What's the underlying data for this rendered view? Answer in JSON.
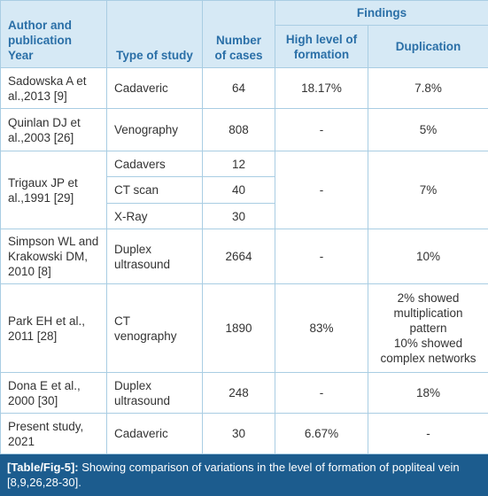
{
  "header": {
    "author": "Author and publication Year",
    "type": "Type of study",
    "cases": "Number of cases",
    "findings": "Findings",
    "high": "High level of formation",
    "duplication": "Duplication"
  },
  "rows": [
    {
      "author": "Sadowska A et al.,2013 [9]",
      "studies": [
        {
          "type": "Cadaveric",
          "cases": 64
        }
      ],
      "high": "18.17%",
      "duplication": "7.8%"
    },
    {
      "author": "Quinlan DJ et al.,2003 [26]",
      "studies": [
        {
          "type": "Venography",
          "cases": 808
        }
      ],
      "high": "-",
      "duplication": "5%"
    },
    {
      "author": "Trigaux JP et al.,1991 [29]",
      "studies": [
        {
          "type": "Cadavers",
          "cases": 12
        },
        {
          "type": "CT scan",
          "cases": 40
        },
        {
          "type": "X-Ray",
          "cases": 30
        }
      ],
      "high": "-",
      "duplication": "7%"
    },
    {
      "author": "Simpson WL and Krakowski DM, 2010 [8]",
      "studies": [
        {
          "type": "Duplex ultrasound",
          "cases": 2664
        }
      ],
      "high": "-",
      "duplication": "10%"
    },
    {
      "author": "Park EH et al., 2011 [28]",
      "studies": [
        {
          "type": "CT venography",
          "cases": 1890
        }
      ],
      "high": "83%",
      "duplication": [
        "2% showed multiplication pattern",
        "10% showed complex networks"
      ]
    },
    {
      "author": "Dona E et al., 2000 [30]",
      "studies": [
        {
          "type": "Duplex ultrasound",
          "cases": 248
        }
      ],
      "high": "-",
      "duplication": "18%"
    },
    {
      "author": "Present study, 2021",
      "studies": [
        {
          "type": "Cadaveric",
          "cases": 30
        }
      ],
      "high": "6.67%",
      "duplication": "-"
    }
  ],
  "caption": {
    "label": "[Table/Fig-5]:",
    "text": "Showing comparison of variations in the level of formation of popliteal vein [8,9,26,28-30]."
  }
}
